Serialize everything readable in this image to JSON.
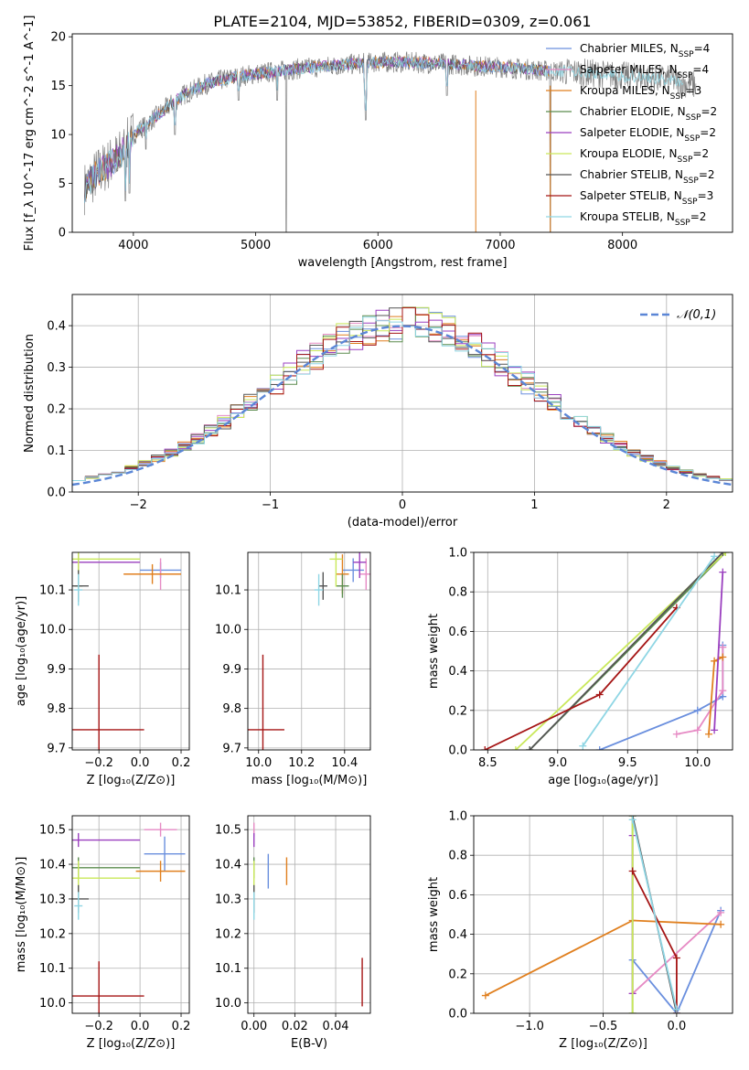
{
  "figure_title": "PLATE=2104, MJD=53852, FIBERID=0309, z=0.061",
  "colors": {
    "Chabrier MILES": "#6a8fde",
    "Salpeter MILES": "#e68ac4",
    "Kroupa MILES": "#e07f1e",
    "Chabrier ELODIE": "#5b8c4e",
    "Salpeter ELODIE": "#9a3fbf",
    "Kroupa ELODIE": "#c9e85a",
    "Chabrier STELIB": "#555555",
    "Salpeter STELIB": "#a51515",
    "Kroupa STELIB": "#8fd6e4",
    "spectrum": "#808080",
    "normal": "#5b86d6"
  },
  "chart_data": [
    {
      "type": "line",
      "title": "PLATE=2104, MJD=53852, FIBERID=0309, z=0.061",
      "xlabel": "wavelength [Angstrom, rest frame]",
      "ylabel": "Flux [f_λ 10^-17 erg cm^-2 s^-1 A^-1]",
      "xlim": [
        3500,
        8900
      ],
      "ylim": [
        0,
        20.3
      ],
      "xticks": [
        4000,
        5000,
        6000,
        7000,
        8000
      ],
      "yticks": [
        0,
        5,
        10,
        15,
        20
      ],
      "grid": false,
      "legend_position": "right",
      "legend": [
        {
          "name": "Chabrier MILES",
          "nssp": "4"
        },
        {
          "name": "Salpeter MILES",
          "nssp": "4"
        },
        {
          "name": "Kroupa MILES",
          "nssp": "3"
        },
        {
          "name": "Chabrier ELODIE",
          "nssp": "2"
        },
        {
          "name": "Salpeter ELODIE",
          "nssp": "2"
        },
        {
          "name": "Kroupa ELODIE",
          "nssp": "2"
        },
        {
          "name": "Chabrier STELIB",
          "nssp": "2"
        },
        {
          "name": "Salpeter STELIB",
          "nssp": "3"
        },
        {
          "name": "Kroupa STELIB",
          "nssp": "2"
        }
      ],
      "model_continuum": {
        "x": [
          3600,
          3700,
          3800,
          3900,
          4000,
          4100,
          4200,
          4300,
          4400,
          4600,
          4800,
          5000,
          5200,
          5400,
          5600,
          5800,
          6000,
          6200,
          6400,
          6600,
          6800,
          7000,
          7200,
          7400,
          7600,
          7800,
          8000,
          8200,
          8400,
          8600
        ],
        "y": [
          4.5,
          6.0,
          7.0,
          8.0,
          10.0,
          11.0,
          12.0,
          13.0,
          14.0,
          15.2,
          15.8,
          16.2,
          16.5,
          16.8,
          17.0,
          17.2,
          17.4,
          17.4,
          17.3,
          17.2,
          17.0,
          16.9,
          16.7,
          16.5,
          16.4,
          16.2,
          16.0,
          15.8,
          15.6,
          15.0
        ]
      },
      "absorption_lines": [
        {
          "x": 3934,
          "y": 3.2
        },
        {
          "x": 3969,
          "y": 4.0
        },
        {
          "x": 4102,
          "y": 8.5
        },
        {
          "x": 4340,
          "y": 10.0
        },
        {
          "x": 4861,
          "y": 13.5
        },
        {
          "x": 5175,
          "y": 13.5
        },
        {
          "x": 5250,
          "y": 0.0
        },
        {
          "x": 5890,
          "y": 14.5
        },
        {
          "x": 5900,
          "y": 11.5
        },
        {
          "x": 6563,
          "y": 14.0
        },
        {
          "x": 7410,
          "y": 0.0
        }
      ]
    },
    {
      "type": "line",
      "xlabel": "(data-model)/error",
      "ylabel": "Normed distribution",
      "xlim": [
        -2.5,
        2.5
      ],
      "ylim": [
        0,
        0.475
      ],
      "xticks": [
        -2,
        -1,
        0,
        1,
        2
      ],
      "yticks": [
        0.0,
        0.1,
        0.2,
        0.3,
        0.4
      ],
      "grid": true,
      "legend_position": "top-right",
      "legend": [
        {
          "name": "𝒩(0,1)"
        }
      ],
      "bin_width": 0.1,
      "normal_curve": {
        "mean": 0,
        "sigma": 1
      }
    },
    {
      "type": "scatter",
      "xlabel": "Z [log10(Z/Z⊙)]",
      "ylabel": "age  [log10(age/yr)]",
      "xlim": [
        -0.33,
        0.24
      ],
      "ylim": [
        9.695,
        10.195
      ],
      "xticks": [
        -0.2,
        0.0,
        0.2
      ],
      "yticks": [
        9.7,
        9.8,
        9.9,
        10.0,
        10.1
      ],
      "grid": true,
      "points": [
        {
          "model": "Chabrier MILES",
          "x": 0.1,
          "y": 10.15,
          "xerr": 0.1,
          "yerr": 0.02
        },
        {
          "model": "Salpeter MILES",
          "x": 0.1,
          "y": 10.14,
          "xerr": 0.04,
          "yerr": 0.04
        },
        {
          "model": "Kroupa MILES",
          "x": 0.06,
          "y": 10.14,
          "xerr": 0.14,
          "yerr": 0.025
        },
        {
          "model": "Chabrier ELODIE",
          "x": -0.3,
          "y": 10.11,
          "xerr": 0.02,
          "yerr": 0.03
        },
        {
          "model": "Salpeter ELODIE",
          "x": -0.3,
          "y": 10.17,
          "xerr": 0.3,
          "yerr": 0.05
        },
        {
          "model": "Kroupa ELODIE",
          "x": -0.3,
          "y": 10.178,
          "xerr": 0.3,
          "yerr": 0.1
        },
        {
          "model": "Chabrier STELIB",
          "x": -0.3,
          "y": 10.11,
          "xerr": 0.05,
          "yerr": 0.04
        },
        {
          "model": "Salpeter STELIB",
          "x": -0.2,
          "y": 9.746,
          "xerr": 0.22,
          "yerr": 0.19
        },
        {
          "model": "Kroupa STELIB",
          "x": -0.3,
          "y": 10.1,
          "xerr": 0.02,
          "yerr": 0.04
        }
      ]
    },
    {
      "type": "scatter",
      "xlabel": "mass [log10(M/M⊙)]",
      "xlim": [
        9.95,
        10.52
      ],
      "ylim": [
        9.695,
        10.195
      ],
      "xticks": [
        10.0,
        10.2,
        10.4
      ],
      "yticks": [
        9.7,
        9.8,
        9.9,
        10.0,
        10.1
      ],
      "grid": true,
      "points": [
        {
          "model": "Chabrier MILES",
          "x": 10.44,
          "y": 10.15,
          "xerr": 0.05,
          "yerr": 0.03
        },
        {
          "model": "Salpeter MILES",
          "x": 10.5,
          "y": 10.14,
          "xerr": 0.03,
          "yerr": 0.04
        },
        {
          "model": "Kroupa MILES",
          "x": 10.39,
          "y": 10.14,
          "xerr": 0.03,
          "yerr": 0.05
        },
        {
          "model": "Chabrier ELODIE",
          "x": 10.39,
          "y": 10.11,
          "xerr": 0.03,
          "yerr": 0.03
        },
        {
          "model": "Salpeter ELODIE",
          "x": 10.47,
          "y": 10.17,
          "xerr": 0.03,
          "yerr": 0.04
        },
        {
          "model": "Kroupa ELODIE",
          "x": 10.36,
          "y": 10.178,
          "xerr": 0.03,
          "yerr": 0.07
        },
        {
          "model": "Chabrier STELIB",
          "x": 10.3,
          "y": 10.11,
          "xerr": 0.02,
          "yerr": 0.035
        },
        {
          "model": "Salpeter STELIB",
          "x": 10.02,
          "y": 9.746,
          "xerr": 0.1,
          "yerr": 0.19
        },
        {
          "model": "Kroupa STELIB",
          "x": 10.28,
          "y": 10.1,
          "xerr": 0.02,
          "yerr": 0.04
        }
      ]
    },
    {
      "type": "line",
      "xlabel": "age  [log10(age/yr)]",
      "ylabel": "mass weight",
      "xlim": [
        8.4,
        10.25
      ],
      "ylim": [
        0,
        1.0
      ],
      "xticks": [
        8.5,
        9.0,
        9.5,
        10.0
      ],
      "yticks": [
        0.0,
        0.2,
        0.4,
        0.6,
        0.8,
        1.0
      ],
      "grid": true,
      "series": [
        {
          "model": "Chabrier MILES",
          "x": [
            9.3,
            10.0,
            10.18,
            10.18
          ],
          "y": [
            0.0,
            0.2,
            0.27,
            0.53
          ]
        },
        {
          "model": "Salpeter MILES",
          "x": [
            9.85,
            10.0,
            10.18,
            10.18
          ],
          "y": [
            0.08,
            0.1,
            0.3,
            0.52
          ]
        },
        {
          "model": "Kroupa MILES",
          "x": [
            10.08,
            10.12,
            10.18
          ],
          "y": [
            0.08,
            0.45,
            0.47
          ]
        },
        {
          "model": "Chabrier ELODIE",
          "x": [
            8.8,
            10.2
          ],
          "y": [
            0.0,
            1.0
          ]
        },
        {
          "model": "Salpeter ELODIE",
          "x": [
            10.12,
            10.18
          ],
          "y": [
            0.1,
            0.9
          ]
        },
        {
          "model": "Kroupa ELODIE",
          "x": [
            8.7,
            10.2
          ],
          "y": [
            0.0,
            1.0
          ]
        },
        {
          "model": "Chabrier STELIB",
          "x": [
            8.8,
            10.18
          ],
          "y": [
            0.0,
            1.0
          ]
        },
        {
          "model": "Salpeter STELIB",
          "x": [
            8.48,
            9.3,
            9.85
          ],
          "y": [
            0.0,
            0.28,
            0.72
          ]
        },
        {
          "model": "Kroupa STELIB",
          "x": [
            9.18,
            10.12
          ],
          "y": [
            0.02,
            0.98
          ]
        }
      ]
    },
    {
      "type": "scatter",
      "xlabel": "Z [log10(Z/Z⊙)]",
      "ylabel": "mass [log10(M/M⊙)]",
      "xlim": [
        -0.33,
        0.24
      ],
      "ylim": [
        9.97,
        10.54
      ],
      "xticks": [
        -0.2,
        0.0,
        0.2
      ],
      "yticks": [
        10.0,
        10.1,
        10.2,
        10.3,
        10.4,
        10.5
      ],
      "grid": true,
      "points": [
        {
          "model": "Chabrier MILES",
          "x": 0.12,
          "y": 10.43,
          "xerr": 0.1,
          "yerr": 0.05
        },
        {
          "model": "Salpeter MILES",
          "x": 0.1,
          "y": 10.5,
          "xerr": 0.08,
          "yerr": 0.02
        },
        {
          "model": "Kroupa MILES",
          "x": 0.1,
          "y": 10.38,
          "xerr": 0.12,
          "yerr": 0.03
        },
        {
          "model": "Chabrier ELODIE",
          "x": -0.3,
          "y": 10.39,
          "xerr": 0.3,
          "yerr": 0.03
        },
        {
          "model": "Salpeter ELODIE",
          "x": -0.3,
          "y": 10.47,
          "xerr": 0.3,
          "yerr": 0.02
        },
        {
          "model": "Kroupa ELODIE",
          "x": -0.3,
          "y": 10.36,
          "xerr": 0.3,
          "yerr": 0.05
        },
        {
          "model": "Chabrier STELIB",
          "x": -0.3,
          "y": 10.3,
          "xerr": 0.05,
          "yerr": 0.04
        },
        {
          "model": "Salpeter STELIB",
          "x": -0.2,
          "y": 10.02,
          "xerr": 0.22,
          "yerr": 0.1
        },
        {
          "model": "Kroupa STELIB",
          "x": -0.3,
          "y": 10.28,
          "xerr": 0.02,
          "yerr": 0.04
        }
      ]
    },
    {
      "type": "scatter",
      "xlabel": "E(B-V)",
      "xlim": [
        -0.003,
        0.057
      ],
      "ylim": [
        9.97,
        10.54
      ],
      "xticks": [
        0.0,
        0.02,
        0.04
      ],
      "yticks": [
        10.0,
        10.1,
        10.2,
        10.3,
        10.4,
        10.5
      ],
      "grid": true,
      "points": [
        {
          "model": "Chabrier MILES",
          "x": 0.007,
          "y": 10.38,
          "yerr": 0.05
        },
        {
          "model": "Salpeter MILES",
          "x": 0.0,
          "y": 10.5,
          "yerr": 0.02
        },
        {
          "model": "Kroupa MILES",
          "x": 0.016,
          "y": 10.38,
          "yerr": 0.04
        },
        {
          "model": "Chabrier ELODIE",
          "x": 0.0,
          "y": 10.39,
          "yerr": 0.03
        },
        {
          "model": "Salpeter ELODIE",
          "x": 0.0,
          "y": 10.47,
          "yerr": 0.02
        },
        {
          "model": "Kroupa ELODIE",
          "x": 0.0,
          "y": 10.36,
          "yerr": 0.05
        },
        {
          "model": "Chabrier STELIB",
          "x": 0.0,
          "y": 10.3,
          "yerr": 0.04
        },
        {
          "model": "Salpeter STELIB",
          "x": 0.053,
          "y": 10.06,
          "yerr": 0.07
        },
        {
          "model": "Kroupa STELIB",
          "x": 0.0,
          "y": 10.28,
          "yerr": 0.04
        }
      ]
    },
    {
      "type": "line",
      "xlabel": "Z [log10(Z/Z⊙)]",
      "ylabel": "mass weight",
      "xlim": [
        -1.38,
        0.38
      ],
      "ylim": [
        0,
        1.0
      ],
      "xticks": [
        -1.0,
        -0.5,
        0.0
      ],
      "yticks": [
        0.0,
        0.2,
        0.4,
        0.6,
        0.8,
        1.0
      ],
      "grid": true,
      "series": [
        {
          "model": "Chabrier MILES",
          "x": [
            -0.3,
            0.0,
            0.3
          ],
          "y": [
            0.27,
            0.0,
            0.52
          ]
        },
        {
          "model": "Salpeter MILES",
          "x": [
            -0.3,
            0.3
          ],
          "y": [
            0.1,
            0.51
          ]
        },
        {
          "model": "Kroupa MILES",
          "x": [
            -1.3,
            -0.3,
            0.3
          ],
          "y": [
            0.09,
            0.47,
            0.45
          ]
        },
        {
          "model": "Chabrier ELODIE",
          "x": [
            -0.3,
            -0.3
          ],
          "y": [
            0.0,
            1.0
          ]
        },
        {
          "model": "Salpeter ELODIE",
          "x": [
            -0.3,
            -0.3
          ],
          "y": [
            0.1,
            0.9
          ]
        },
        {
          "model": "Kroupa ELODIE",
          "x": [
            -0.3,
            -0.3
          ],
          "y": [
            0.0,
            1.0
          ]
        },
        {
          "model": "Chabrier STELIB",
          "x": [
            -0.3,
            0.0
          ],
          "y": [
            1.0,
            0.0
          ]
        },
        {
          "model": "Salpeter STELIB",
          "x": [
            -0.3,
            0.0,
            0.0
          ],
          "y": [
            0.72,
            0.28,
            0.0
          ]
        },
        {
          "model": "Kroupa STELIB",
          "x": [
            -0.3,
            0.0
          ],
          "y": [
            0.98,
            0.02
          ]
        }
      ]
    }
  ]
}
